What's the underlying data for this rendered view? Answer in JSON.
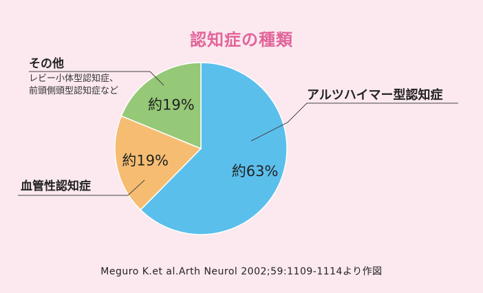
{
  "chart_data": {
    "type": "pie",
    "title": "認知症の種類",
    "slices": [
      {
        "label": "アルツハイマー型認知症",
        "value": 63,
        "data_label": "約63%",
        "color": "#5bbfec"
      },
      {
        "label": "血管性認知症",
        "value": 19,
        "data_label": "約19%",
        "color": "#f6bd72"
      },
      {
        "label": "その他",
        "sublabel_lines": [
          "レビー小体型認知症、",
          "前頭側頭型認知症など"
        ],
        "value": 19,
        "data_label": "約19%",
        "color": "#95c877"
      }
    ],
    "source": "Meguro K.et al.Arth Neurol 2002;59:1109-1114より作図"
  },
  "colors": {
    "background": "#fbe9ef",
    "title": "#e2649a",
    "slice_border": "#ffffff",
    "leader_line": "#444444"
  }
}
